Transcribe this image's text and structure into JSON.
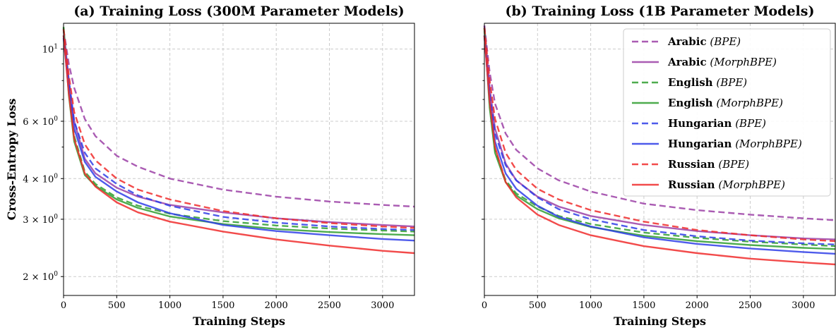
{
  "figure": {
    "colors": {
      "Arabic": "#9b3fa6",
      "English": "#2f9e2f",
      "Hungarian": "#2f3ee8",
      "Russian": "#f02b2b"
    }
  },
  "chart_data": [
    {
      "type": "line",
      "title": "(a) Training Loss (300M Parameter Models)",
      "xlabel": "Training Steps",
      "ylabel": "Cross-Entropy Loss",
      "yscale": "log",
      "xlim": [
        0,
        3300
      ],
      "ylim": [
        1.75,
        12
      ],
      "grid": true,
      "x_ticks": [
        0,
        500,
        1000,
        1500,
        2000,
        2500,
        3000
      ],
      "y_ticks": [
        {
          "value": 2,
          "base": "2 × 10",
          "exp": "0"
        },
        {
          "value": 3,
          "base": "3 × 10",
          "exp": "0"
        },
        {
          "value": 4,
          "base": "4 × 10",
          "exp": "0"
        },
        {
          "value": 6,
          "base": "6 × 10",
          "exp": "0"
        },
        {
          "value": 10,
          "base": "10",
          "exp": "1"
        }
      ],
      "series": [
        {
          "name": "Arabic",
          "tokenizer": "BPE",
          "style": "dashed",
          "x": [
            0,
            50,
            100,
            200,
            300,
            500,
            700,
            1000,
            1500,
            2000,
            2500,
            3000,
            3300
          ],
          "y": [
            11.5,
            9.0,
            7.6,
            6.1,
            5.4,
            4.7,
            4.35,
            4.0,
            3.7,
            3.52,
            3.4,
            3.32,
            3.28
          ]
        },
        {
          "name": "Arabic",
          "tokenizer": "MorphBPE",
          "style": "solid",
          "x": [
            0,
            50,
            100,
            200,
            300,
            500,
            700,
            1000,
            1500,
            2000,
            2500,
            3000,
            3300
          ],
          "y": [
            11.5,
            8.0,
            6.0,
            4.6,
            4.15,
            3.75,
            3.52,
            3.32,
            3.15,
            3.02,
            2.94,
            2.88,
            2.85
          ]
        },
        {
          "name": "English",
          "tokenizer": "BPE",
          "style": "dashed",
          "x": [
            0,
            50,
            100,
            200,
            300,
            500,
            700,
            1000,
            1500,
            2000,
            2500,
            3000,
            3300
          ],
          "y": [
            11.6,
            7.5,
            5.4,
            4.2,
            3.85,
            3.5,
            3.3,
            3.12,
            2.96,
            2.87,
            2.81,
            2.77,
            2.75
          ]
        },
        {
          "name": "English",
          "tokenizer": "MorphBPE",
          "style": "solid",
          "x": [
            0,
            50,
            100,
            200,
            300,
            500,
            700,
            1000,
            1500,
            2000,
            2500,
            3000,
            3300
          ],
          "y": [
            11.7,
            7.2,
            5.2,
            4.1,
            3.8,
            3.45,
            3.25,
            3.06,
            2.9,
            2.8,
            2.74,
            2.7,
            2.68
          ]
        },
        {
          "name": "Hungarian",
          "tokenizer": "BPE",
          "style": "dashed",
          "x": [
            0,
            50,
            100,
            200,
            300,
            500,
            700,
            1000,
            1500,
            2000,
            2500,
            3000,
            3300
          ],
          "y": [
            11.0,
            8.0,
            6.0,
            4.8,
            4.3,
            3.85,
            3.55,
            3.3,
            3.05,
            2.93,
            2.85,
            2.8,
            2.78
          ]
        },
        {
          "name": "Hungarian",
          "tokenizer": "MorphBPE",
          "style": "solid",
          "x": [
            0,
            50,
            100,
            200,
            300,
            500,
            700,
            1000,
            1500,
            2000,
            2500,
            3000,
            3300
          ],
          "y": [
            10.8,
            7.5,
            5.7,
            4.5,
            4.05,
            3.65,
            3.38,
            3.13,
            2.88,
            2.76,
            2.68,
            2.61,
            2.58
          ]
        },
        {
          "name": "Russian",
          "tokenizer": "BPE",
          "style": "dashed",
          "x": [
            0,
            50,
            100,
            200,
            300,
            500,
            700,
            1000,
            1500,
            2000,
            2500,
            3000,
            3300
          ],
          "y": [
            11.5,
            8.3,
            6.4,
            5.1,
            4.55,
            4.0,
            3.7,
            3.45,
            3.18,
            3.02,
            2.92,
            2.85,
            2.82
          ]
        },
        {
          "name": "Russian",
          "tokenizer": "MorphBPE",
          "style": "solid",
          "x": [
            0,
            50,
            100,
            200,
            300,
            500,
            700,
            1000,
            1500,
            2000,
            2500,
            3000,
            3300
          ],
          "y": [
            11.0,
            7.3,
            5.3,
            4.15,
            3.78,
            3.38,
            3.15,
            2.95,
            2.75,
            2.6,
            2.49,
            2.4,
            2.36
          ]
        }
      ]
    },
    {
      "type": "line",
      "title": "(b) Training Loss (1B Parameter Models)",
      "xlabel": "Training Steps",
      "ylabel": "",
      "yscale": "log",
      "xlim": [
        0,
        3300
      ],
      "ylim": [
        1.75,
        12
      ],
      "grid": true,
      "legend": "top-right",
      "x_ticks": [
        0,
        500,
        1000,
        1500,
        2000,
        2500,
        3000
      ],
      "series": [
        {
          "name": "Arabic",
          "tokenizer": "BPE",
          "style": "dashed",
          "x": [
            0,
            50,
            100,
            200,
            300,
            500,
            700,
            1000,
            1500,
            2000,
            2500,
            3000,
            3300
          ],
          "y": [
            11.8,
            8.5,
            6.8,
            5.5,
            4.9,
            4.3,
            3.95,
            3.65,
            3.35,
            3.2,
            3.1,
            3.02,
            2.98
          ]
        },
        {
          "name": "Arabic",
          "tokenizer": "MorphBPE",
          "style": "solid",
          "x": [
            0,
            50,
            100,
            200,
            300,
            500,
            700,
            1000,
            1500,
            2000,
            2500,
            3000,
            3300
          ],
          "y": [
            11.8,
            7.6,
            5.7,
            4.45,
            3.95,
            3.52,
            3.28,
            3.07,
            2.88,
            2.76,
            2.68,
            2.62,
            2.6
          ]
        },
        {
          "name": "English",
          "tokenizer": "BPE",
          "style": "dashed",
          "x": [
            0,
            50,
            100,
            200,
            300,
            500,
            700,
            1000,
            1500,
            2000,
            2500,
            3000,
            3300
          ],
          "y": [
            11.6,
            6.8,
            4.9,
            3.95,
            3.6,
            3.28,
            3.07,
            2.9,
            2.73,
            2.63,
            2.56,
            2.51,
            2.48
          ]
        },
        {
          "name": "English",
          "tokenizer": "MorphBPE",
          "style": "solid",
          "x": [
            0,
            50,
            100,
            200,
            300,
            500,
            700,
            1000,
            1500,
            2000,
            2500,
            3000,
            3300
          ],
          "y": [
            11.6,
            6.6,
            4.8,
            3.9,
            3.55,
            3.22,
            3.02,
            2.84,
            2.67,
            2.57,
            2.5,
            2.45,
            2.43
          ]
        },
        {
          "name": "Hungarian",
          "tokenizer": "BPE",
          "style": "dashed",
          "x": [
            0,
            50,
            100,
            200,
            300,
            500,
            700,
            1000,
            1500,
            2000,
            2500,
            3000,
            3300
          ],
          "y": [
            11.0,
            7.3,
            5.5,
            4.4,
            3.95,
            3.5,
            3.22,
            3.0,
            2.78,
            2.66,
            2.58,
            2.53,
            2.51
          ]
        },
        {
          "name": "Hungarian",
          "tokenizer": "MorphBPE",
          "style": "solid",
          "x": [
            0,
            50,
            100,
            200,
            300,
            500,
            700,
            1000,
            1500,
            2000,
            2500,
            3000,
            3300
          ],
          "y": [
            11.0,
            7.0,
            5.2,
            4.15,
            3.72,
            3.3,
            3.05,
            2.85,
            2.64,
            2.52,
            2.44,
            2.38,
            2.35
          ]
        },
        {
          "name": "Russian",
          "tokenizer": "BPE",
          "style": "dashed",
          "x": [
            0,
            50,
            100,
            200,
            300,
            500,
            700,
            1000,
            1500,
            2000,
            2500,
            3000,
            3300
          ],
          "y": [
            11.6,
            8.0,
            6.1,
            4.8,
            4.25,
            3.72,
            3.45,
            3.2,
            2.95,
            2.78,
            2.68,
            2.6,
            2.57
          ]
        },
        {
          "name": "Russian",
          "tokenizer": "MorphBPE",
          "style": "solid",
          "x": [
            0,
            50,
            100,
            200,
            300,
            500,
            700,
            1000,
            1500,
            2000,
            2500,
            3000,
            3300
          ],
          "y": [
            11.0,
            6.9,
            5.0,
            3.9,
            3.5,
            3.1,
            2.88,
            2.68,
            2.48,
            2.36,
            2.27,
            2.21,
            2.18
          ]
        }
      ]
    }
  ]
}
